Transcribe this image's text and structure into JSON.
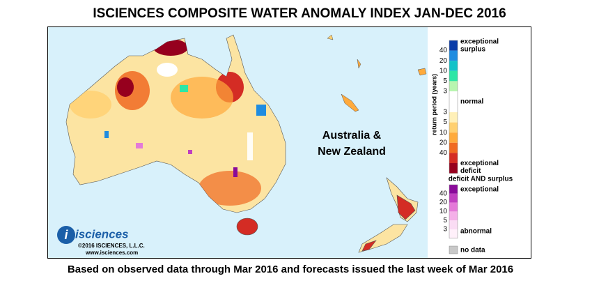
{
  "title": "ISCIENCES COMPOSITE WATER ANOMALY INDEX JAN-DEC 2016",
  "caption": "Based on observed data through Mar 2016 and forecasts issued the last week of Mar 2016",
  "map_label": [
    "Australia &",
    "New Zealand"
  ],
  "logo": {
    "name": "isciences",
    "copyright": "©2016 ISCIENCES, L.L.C.",
    "url": "www.isciences.com"
  },
  "legend": {
    "axis_label": "return period (years)",
    "surplus_label": [
      "exceptional",
      "surplus"
    ],
    "normal_label": "normal",
    "deficit_label": [
      "exceptional",
      "deficit"
    ],
    "surplus_ticks": [
      40,
      20,
      10,
      5,
      3
    ],
    "deficit_ticks": [
      3,
      5,
      10,
      20,
      40
    ],
    "surplus_colors": [
      "#0a3ca8",
      "#1f8ce0",
      "#12c2c8",
      "#2ee6a6",
      "#b8f5b0"
    ],
    "normal_color": "#ffffff",
    "deficit_colors": [
      "#fff0b8",
      "#ffd070",
      "#ffaa3c",
      "#f06a22",
      "#d42c24",
      "#96001e"
    ],
    "both_title": "deficit AND surplus",
    "both_top": "exceptional",
    "both_bottom": "abnormal",
    "both_ticks": [
      40,
      20,
      10,
      5,
      3
    ],
    "both_colors": [
      "#8a0a9a",
      "#c040c0",
      "#e47ad8",
      "#f4b0e8",
      "#fadcf4",
      "#fff0fa"
    ],
    "no_data": "no data",
    "no_data_color": "#c8c8c8"
  }
}
